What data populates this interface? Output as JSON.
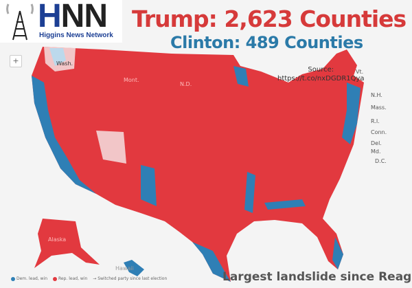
{
  "logo": {
    "letters_h": "H",
    "letters_nn": "NN",
    "subtitle": "Higgins News Network"
  },
  "headline": {
    "trump": "Trump: 2,623 Counties",
    "clinton": "Clinton: 489 Counties"
  },
  "source": {
    "label": "Source:",
    "url": "https://t.co/nxDGDR1Qya"
  },
  "zoom_button": "+",
  "state_labels": {
    "wash": "Wash.",
    "mont": "Mont.",
    "nd": "N.D.",
    "vt": "Vt.",
    "nh": "N.H.",
    "mass": "Mass.",
    "ri": "R.I.",
    "conn": "Conn.",
    "del": "Del.",
    "md": "Md.",
    "dc": "D.C.",
    "alaska": "Alaska",
    "hawaii": "Hawaii"
  },
  "legend": {
    "dem": "Dem. lead, win",
    "rep": "Rep. lead, win",
    "switched": "Switched party since last election"
  },
  "tagline": "Largest landslide since Reagan",
  "colors": {
    "rep": "#e2393f",
    "dem": "#2f7fb5",
    "light_rep": "#f2c6c8",
    "light_dem": "#bcd9ec",
    "trump_text": "#d63a3a",
    "clinton_text": "#2b7aa8"
  }
}
